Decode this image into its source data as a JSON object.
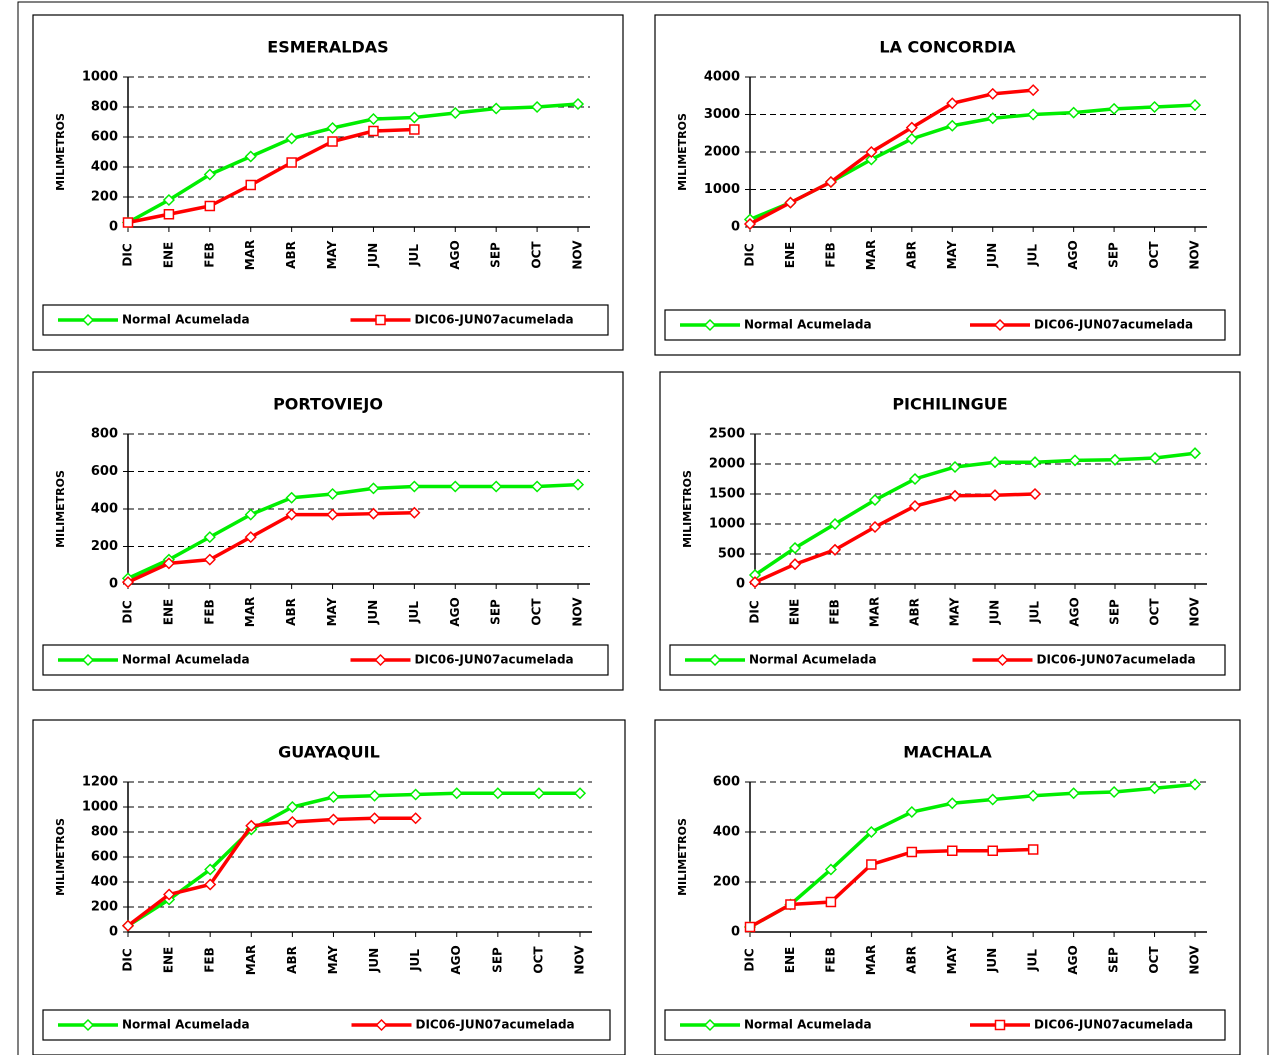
{
  "chart_data": [
    {
      "type": "line",
      "title": "ESMERALDAS",
      "ylabel": "MILIMETROS",
      "categories": [
        "DIC",
        "ENE",
        "FEB",
        "MAR",
        "ABR",
        "MAY",
        "JUN",
        "JUL",
        "AGO",
        "SEP",
        "OCT",
        "NOV"
      ],
      "ylim": [
        0,
        1000
      ],
      "yticks": [
        0,
        200,
        400,
        600,
        800,
        1000
      ],
      "grid": true,
      "series": [
        {
          "name": "Normal Acumelada",
          "color": "#00ee00",
          "marker": "diamond",
          "values": [
            30,
            180,
            350,
            470,
            590,
            660,
            720,
            730,
            760,
            790,
            800,
            820
          ]
        },
        {
          "name": "DIC06-JUN07acumelada",
          "color": "#ff0000",
          "marker": "square",
          "values": [
            30,
            85,
            140,
            280,
            430,
            570,
            640,
            650,
            null,
            null,
            null,
            null
          ]
        }
      ]
    },
    {
      "type": "line",
      "title": "LA  CONCORDIA",
      "ylabel": "MILIMETROS",
      "categories": [
        "DIC",
        "ENE",
        "FEB",
        "MAR",
        "ABR",
        "MAY",
        "JUN",
        "JUL",
        "AGO",
        "SEP",
        "OCT",
        "NOV"
      ],
      "ylim": [
        0,
        4000
      ],
      "yticks": [
        0,
        1000,
        2000,
        3000,
        4000
      ],
      "grid": true,
      "series": [
        {
          "name": "Normal Acumelada",
          "color": "#00ee00",
          "marker": "diamond",
          "values": [
            200,
            650,
            1200,
            1800,
            2350,
            2700,
            2900,
            3000,
            3050,
            3150,
            3200,
            3250
          ]
        },
        {
          "name": "DIC06-JUN07acumelada",
          "color": "#ff0000",
          "marker": "diamond",
          "values": [
            80,
            650,
            1200,
            2000,
            2650,
            3300,
            3550,
            3650,
            null,
            null,
            null,
            null
          ]
        }
      ]
    },
    {
      "type": "line",
      "title": "PORTOVIEJO",
      "ylabel": "MILIMETROS",
      "categories": [
        "DIC",
        "ENE",
        "FEB",
        "MAR",
        "ABR",
        "MAY",
        "JUN",
        "JUL",
        "AGO",
        "SEP",
        "OCT",
        "NOV"
      ],
      "ylim": [
        0,
        800
      ],
      "yticks": [
        0,
        200,
        400,
        600,
        800
      ],
      "grid": true,
      "series": [
        {
          "name": "Normal Acumelada",
          "color": "#00ee00",
          "marker": "diamond",
          "values": [
            30,
            130,
            250,
            370,
            460,
            480,
            510,
            520,
            520,
            520,
            520,
            530
          ]
        },
        {
          "name": "DIC06-JUN07acumelada",
          "color": "#ff0000",
          "marker": "diamond",
          "values": [
            10,
            110,
            130,
            250,
            370,
            370,
            375,
            380,
            null,
            null,
            null,
            null
          ]
        }
      ]
    },
    {
      "type": "line",
      "title": "PICHILINGUE",
      "ylabel": "MILIMETROS",
      "categories": [
        "DIC",
        "ENE",
        "FEB",
        "MAR",
        "ABR",
        "MAY",
        "JUN",
        "JUL",
        "AGO",
        "SEP",
        "OCT",
        "NOV"
      ],
      "ylim": [
        0,
        2500
      ],
      "yticks": [
        0,
        500,
        1000,
        1500,
        2000,
        2500
      ],
      "grid": true,
      "series": [
        {
          "name": "Normal Acumelada",
          "color": "#00ee00",
          "marker": "diamond",
          "values": [
            150,
            600,
            1000,
            1400,
            1750,
            1950,
            2030,
            2030,
            2060,
            2070,
            2100,
            2180
          ]
        },
        {
          "name": "DIC06-JUN07acumelada",
          "color": "#ff0000",
          "marker": "diamond",
          "values": [
            30,
            330,
            570,
            950,
            1300,
            1470,
            1480,
            1500,
            null,
            null,
            null,
            null
          ]
        }
      ]
    },
    {
      "type": "line",
      "title": "GUAYAQUIL",
      "ylabel": "MILIMETROS",
      "categories": [
        "DIC",
        "ENE",
        "FEB",
        "MAR",
        "ABR",
        "MAY",
        "JUN",
        "JUL",
        "AGO",
        "SEP",
        "OCT",
        "NOV"
      ],
      "ylim": [
        0,
        1200
      ],
      "yticks": [
        0,
        200,
        400,
        600,
        800,
        1000,
        1200
      ],
      "grid": true,
      "series": [
        {
          "name": "Normal Acumelada",
          "color": "#00ee00",
          "marker": "diamond",
          "values": [
            50,
            260,
            500,
            820,
            1000,
            1080,
            1090,
            1100,
            1110,
            1110,
            1110,
            1110
          ]
        },
        {
          "name": "DIC06-JUN07acumelada",
          "color": "#ff0000",
          "marker": "diamond",
          "values": [
            50,
            300,
            380,
            850,
            880,
            900,
            910,
            910,
            null,
            null,
            null,
            null
          ]
        }
      ]
    },
    {
      "type": "line",
      "title": "MACHALA",
      "ylabel": "MILIMETROS",
      "categories": [
        "DIC",
        "ENE",
        "FEB",
        "MAR",
        "ABR",
        "MAY",
        "JUN",
        "JUL",
        "AGO",
        "SEP",
        "OCT",
        "NOV"
      ],
      "ylim": [
        0,
        600
      ],
      "yticks": [
        0,
        200,
        400,
        600
      ],
      "grid": true,
      "series": [
        {
          "name": "Normal Acumelada",
          "color": "#00ee00",
          "marker": "diamond",
          "values": [
            20,
            110,
            250,
            400,
            480,
            515,
            530,
            545,
            555,
            560,
            575,
            590
          ]
        },
        {
          "name": "DIC06-JUN07acumelada",
          "color": "#ff0000",
          "marker": "square",
          "values": [
            20,
            110,
            120,
            270,
            320,
            325,
            325,
            330,
            null,
            null,
            null,
            null
          ]
        }
      ]
    }
  ]
}
